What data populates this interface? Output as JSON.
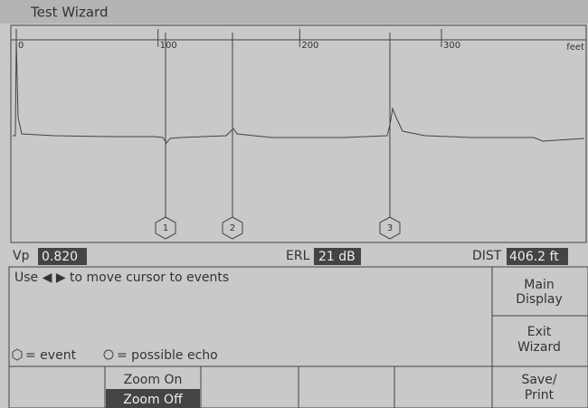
{
  "title": "Test Wizard",
  "trace": {
    "xticks": [
      0,
      100,
      200,
      300
    ],
    "unit": "feet",
    "cursors": [
      "1",
      "2",
      "3"
    ]
  },
  "status": {
    "vp_label": "Vp",
    "vp": "0.820",
    "erl_label": "ERL",
    "erl": "21 dB",
    "dist_label": "DIST",
    "dist": "406.2 ft"
  },
  "message": "Use ◀ ▶ to move cursor to events",
  "legend": {
    "event": "= event",
    "echo": "= possible echo"
  },
  "softkeys": [
    [
      "Main",
      "Display"
    ],
    [
      "Exit",
      "Wizard"
    ],
    [
      "Save/",
      "Print"
    ]
  ],
  "zoom": {
    "on": "Zoom On",
    "off": "Zoom Off"
  }
}
